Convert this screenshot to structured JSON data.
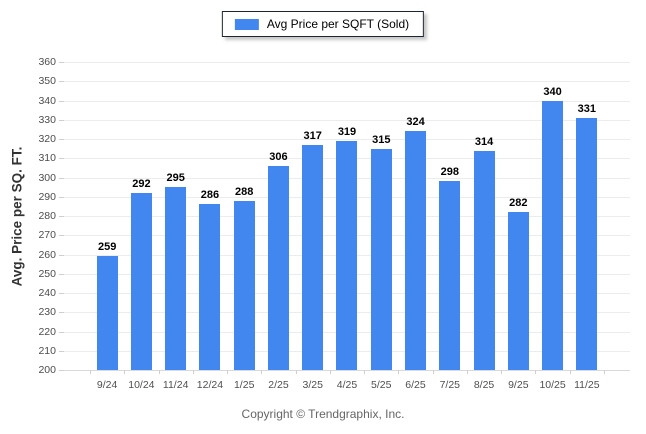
{
  "legend": {
    "label": "Avg Price per SQFT (Sold)"
  },
  "y_axis": {
    "title": "Avg. Price per SQ. FT."
  },
  "footer": {
    "copyright": "Copyright © Trendgraphix, Inc."
  },
  "colors": {
    "bar": "#4286f0",
    "legend_border": "#1c2532",
    "gridline": "#ececec",
    "axis_text": "#4f4f4f",
    "value_label": "#000000"
  },
  "chart_data": {
    "type": "bar",
    "title": "",
    "xlabel": "",
    "ylabel": "Avg. Price per SQ. FT.",
    "categories": [
      "9/24",
      "10/24",
      "11/24",
      "12/24",
      "1/25",
      "2/25",
      "3/25",
      "4/25",
      "5/25",
      "6/25",
      "7/25",
      "8/25",
      "9/25",
      "10/25",
      "11/25"
    ],
    "series": [
      {
        "name": "Avg Price per SQFT (Sold)",
        "values": [
          259,
          292,
          295,
          286,
          288,
          306,
          317,
          319,
          315,
          324,
          298,
          314,
          282,
          340,
          331
        ]
      }
    ],
    "ylim": [
      200,
      360
    ],
    "ytick_step": 10,
    "grid": true,
    "legend_position": "top-center",
    "data_labels": true
  }
}
